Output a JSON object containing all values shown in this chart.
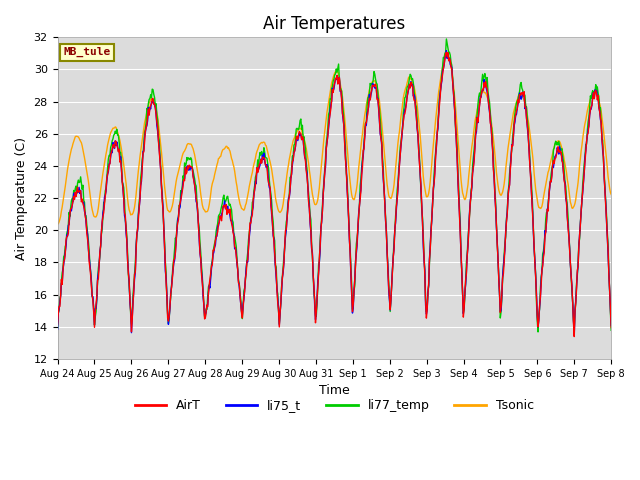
{
  "title": "Air Temperatures",
  "ylabel": "Air Temperature (C)",
  "xlabel": "Time",
  "ylim": [
    12,
    32
  ],
  "yticks": [
    12,
    14,
    16,
    18,
    20,
    22,
    24,
    26,
    28,
    30,
    32
  ],
  "xtick_labels": [
    "Aug 24",
    "Aug 25",
    "Aug 26",
    "Aug 27",
    "Aug 28",
    "Aug 29",
    "Aug 30",
    "Aug 31",
    "Sep 1",
    "Sep 2",
    "Sep 3",
    "Sep 4",
    "Sep 5",
    "Sep 6",
    "Sep 7",
    "Sep 8"
  ],
  "annotation_text": "MB_tule",
  "annotation_color": "#8B0000",
  "annotation_bg": "#FFFFCC",
  "line_colors": {
    "AirT": "#FF0000",
    "li75_t": "#0000FF",
    "li77_temp": "#00CC00",
    "Tsonic": "#FFA500"
  },
  "bg_color": "#DCDCDC",
  "title_fontsize": 12,
  "label_fontsize": 9,
  "tick_fontsize": 8,
  "legend_fontsize": 9,
  "n_days": 15,
  "pts_per_day": 48,
  "day_maxes": [
    22.5,
    25.5,
    28.0,
    24.0,
    21.5,
    24.5,
    26.0,
    29.5,
    29.0,
    29.0,
    31.0,
    29.0,
    28.5,
    25.0,
    28.5
  ],
  "day_mins": [
    14.2,
    14.0,
    13.8,
    14.0,
    14.5,
    14.5,
    14.0,
    14.5,
    15.0,
    14.5,
    14.5,
    14.5,
    14.5,
    13.5,
    14.0
  ],
  "tsonic_maxes": [
    26.0,
    26.5,
    28.2,
    25.5,
    25.3,
    25.5,
    26.5,
    30.0,
    29.5,
    29.8,
    31.2,
    28.8,
    28.7,
    25.5,
    29.0
  ],
  "tsonic_mins": [
    19.5,
    19.5,
    19.5,
    20.0,
    20.0,
    20.2,
    19.8,
    20.0,
    20.0,
    20.0,
    20.0,
    20.5,
    21.0,
    19.5,
    21.0
  ]
}
